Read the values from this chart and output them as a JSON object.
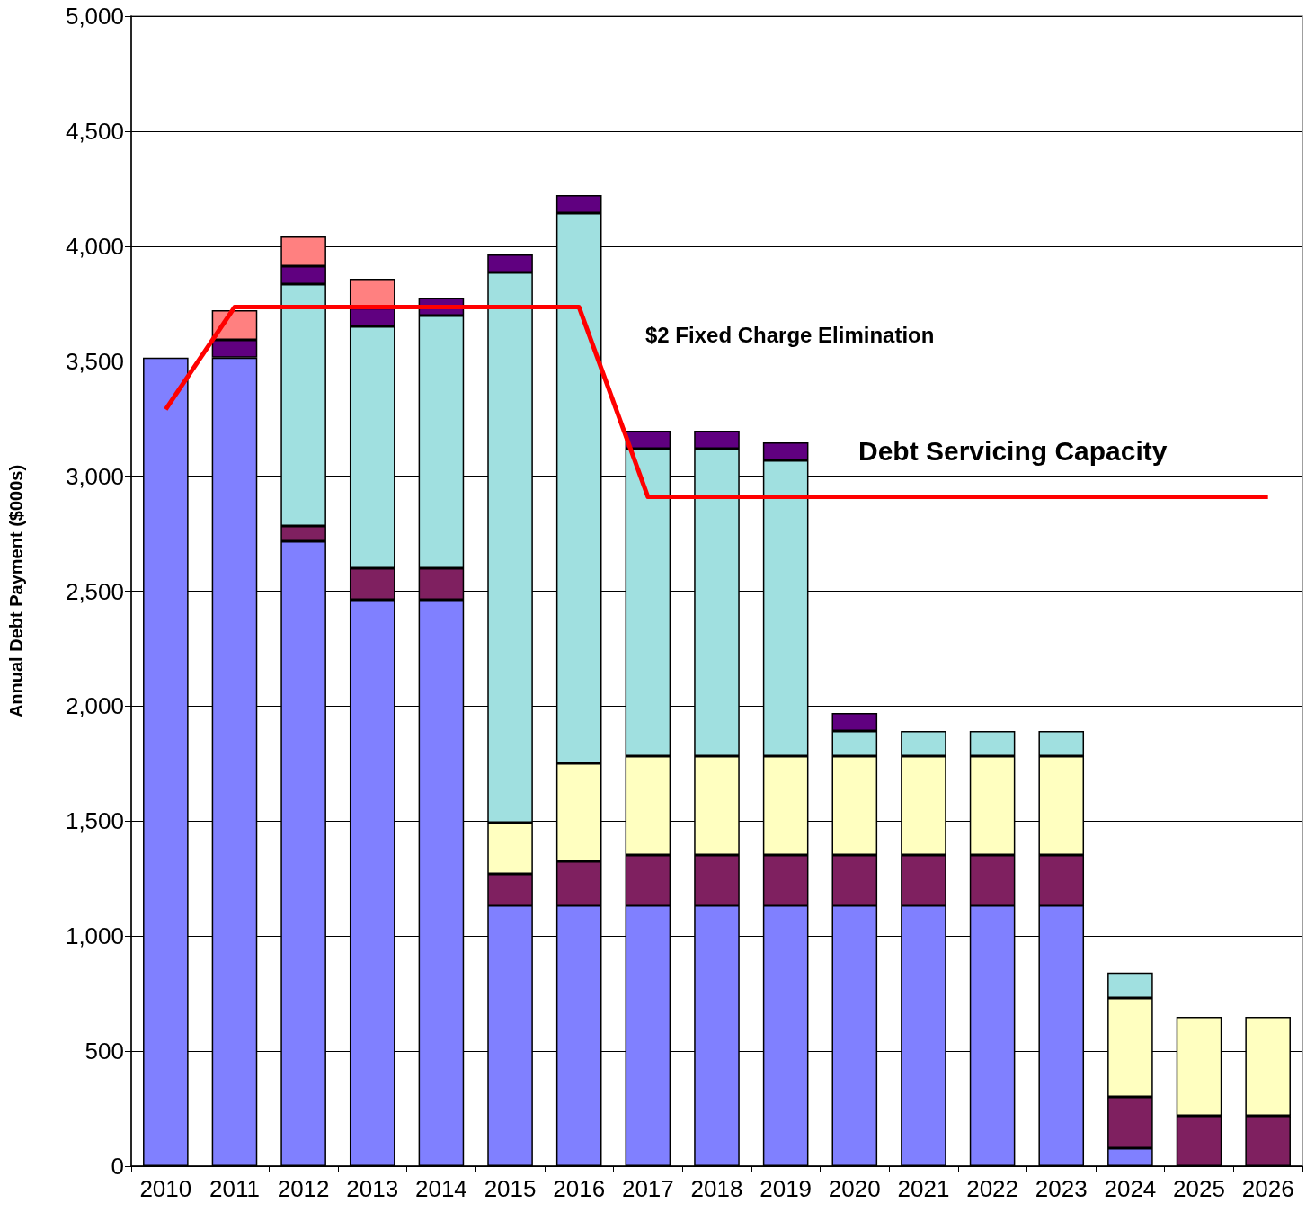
{
  "chart_data": {
    "type": "bar",
    "stacked": true,
    "ylabel": "Annual Debt Payment ($000s)",
    "categories": [
      "2010",
      "2011",
      "2012",
      "2013",
      "2014",
      "2015",
      "2016",
      "2017",
      "2018",
      "2019",
      "2020",
      "2021",
      "2022",
      "2023",
      "2024",
      "2025",
      "2026"
    ],
    "series": [
      {
        "color": "#8080ff",
        "values": [
          3515,
          3515,
          2717,
          2463,
          2463,
          1134,
          1134,
          1134,
          1134,
          1134,
          1134,
          1134,
          1134,
          1134,
          78,
          null,
          null
        ]
      },
      {
        "color": "#7f2060",
        "values": [
          null,
          null,
          66,
          137,
          137,
          137,
          191,
          219,
          219,
          219,
          219,
          219,
          219,
          219,
          223,
          219,
          219
        ]
      },
      {
        "color": "#ffffc0",
        "values": [
          null,
          null,
          null,
          null,
          null,
          222,
          426,
          430,
          430,
          430,
          430,
          430,
          430,
          430,
          430,
          430,
          430
        ]
      },
      {
        "color": "#a0e0e0",
        "values": [
          null,
          null,
          1052,
          1051,
          1098,
          2393,
          2393,
          1337,
          1337,
          1286,
          109,
          109,
          109,
          109,
          110,
          null,
          null
        ]
      },
      {
        "color": "#600080",
        "values": [
          null,
          78,
          78,
          79,
          78,
          78,
          78,
          78,
          78,
          78,
          78,
          null,
          null,
          null,
          null,
          null,
          null
        ]
      },
      {
        "color": "#ff8080",
        "values": [
          null,
          129,
          129,
          128,
          null,
          null,
          null,
          null,
          null,
          null,
          null,
          null,
          null,
          null,
          null,
          null,
          null
        ]
      },
      {
        "type": "line",
        "name": "Debt Servicing Capacity",
        "color": "#ff0000",
        "values": [
          3290,
          3735,
          3735,
          3735,
          3735,
          3735,
          3735,
          2910,
          2910,
          2910,
          2910,
          2910,
          2910,
          2910,
          2910,
          2910,
          2910
        ]
      }
    ],
    "annotations": [
      "$2 Fixed Charge Elimination"
    ],
    "ylim": [
      0,
      5000
    ],
    "yticks": [
      0,
      500,
      {
        "value": 1000,
        "label": "1,000"
      },
      {
        "value": 1500,
        "label": "1,500"
      },
      {
        "value": 2000,
        "label": "2,000"
      },
      {
        "value": 2500,
        "label": "2,500"
      },
      {
        "value": 3000,
        "label": "3,000"
      },
      {
        "value": 3500,
        "label": "3,500"
      },
      {
        "value": 4000,
        "label": "4,000"
      },
      {
        "value": 4500,
        "label": "4,500"
      },
      {
        "value": 5000,
        "label": "5,000"
      }
    ],
    "grid": "y",
    "legend": false,
    "marker": "none"
  }
}
